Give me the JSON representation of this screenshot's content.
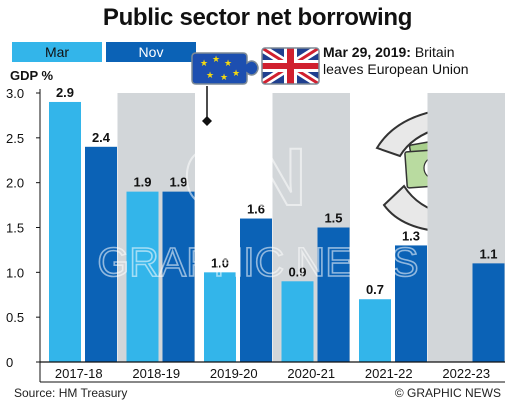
{
  "title": "Public sector net borrowing",
  "legend": [
    {
      "label": "Mar",
      "color": "#33b5ea",
      "text_color": "#111111"
    },
    {
      "label": "Nov",
      "color": "#0b62b6",
      "text_color": "#ffffff"
    }
  ],
  "annotation": {
    "date": "Mar 29, 2019:",
    "text_line1": "Britain",
    "text_line2": "leaves European Union"
  },
  "watermark": "GRAPHIC NEWS",
  "source": "Source: HM Treasury",
  "credit": "© GRAPHIC NEWS",
  "colors": {
    "mar": "#33b5ea",
    "nov": "#0b62b6",
    "band": "#d2d6d9",
    "axis_bg": "#ffffff"
  },
  "chart_data": {
    "type": "bar",
    "ylabel": "GDP %",
    "ylim": [
      0,
      3.0
    ],
    "yticks": [
      "0",
      "0.5",
      "1.0",
      "1.5",
      "2.0",
      "2.5",
      "3.0"
    ],
    "categories": [
      "2017-18",
      "2018-19",
      "2019-20",
      "2020-21",
      "2021-22",
      "2022-23"
    ],
    "series": [
      {
        "name": "Mar",
        "values": [
          2.9,
          1.9,
          1.0,
          0.9,
          0.7,
          null
        ],
        "labels": [
          "2.9",
          "1.9",
          "1.0",
          "0.9",
          "0.7",
          ""
        ]
      },
      {
        "name": "Nov",
        "values": [
          2.4,
          1.9,
          1.6,
          1.5,
          1.3,
          1.1
        ],
        "labels": [
          "2.4",
          "1.9",
          "1.6",
          "1.5",
          "1.3",
          "1.1"
        ]
      }
    ],
    "grid": false
  }
}
